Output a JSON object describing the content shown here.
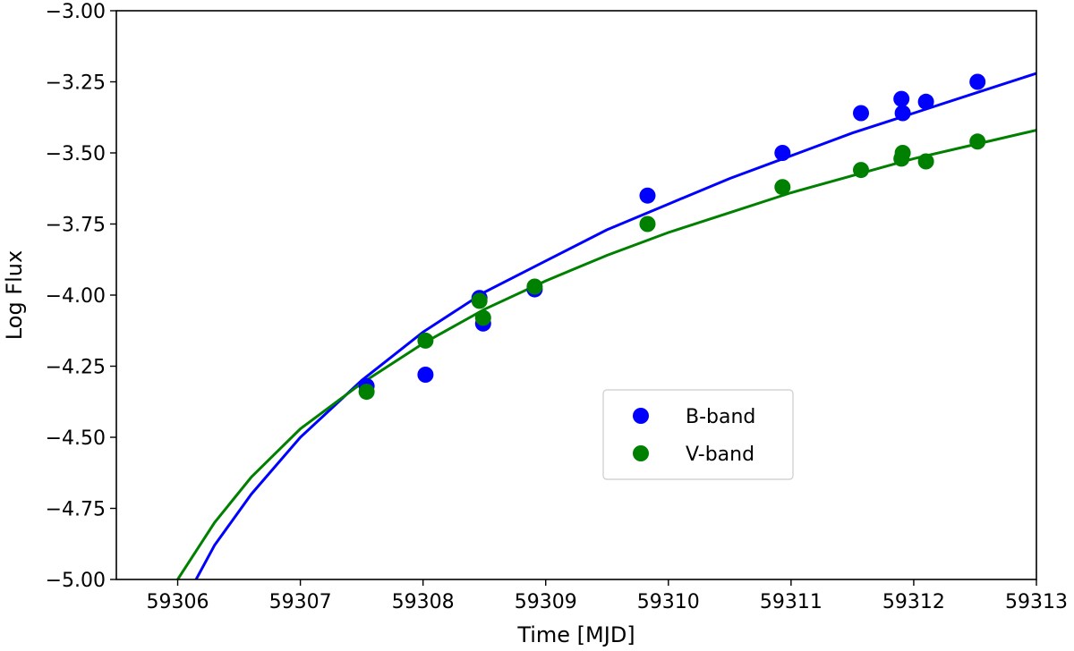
{
  "chart_data": {
    "type": "scatter",
    "xlabel": "Time [MJD]",
    "ylabel": "Log Flux",
    "xlim": [
      59305.5,
      59313
    ],
    "ylim": [
      -5.0,
      -3.0
    ],
    "x_ticks": [
      59306,
      59307,
      59308,
      59309,
      59310,
      59311,
      59312,
      59313
    ],
    "x_tick_labels": [
      "59306",
      "59307",
      "59308",
      "59309",
      "59310",
      "59311",
      "59312",
      "59313"
    ],
    "y_ticks": [
      -3.0,
      -3.25,
      -3.5,
      -3.75,
      -4.0,
      -4.25,
      -4.5,
      -4.75,
      -5.0
    ],
    "y_tick_labels": [
      "−3.00",
      "−3.25",
      "−3.50",
      "−3.75",
      "−4.00",
      "−4.25",
      "−4.50",
      "−4.75",
      "−5.00"
    ],
    "grid": false,
    "legend_position": "center-right",
    "series": [
      {
        "name": "B-band",
        "color": "#0000ff",
        "x": [
          59307.54,
          59308.02,
          59308.46,
          59308.49,
          59308.91,
          59309.83,
          59310.93,
          59311.57,
          59311.9,
          59311.91,
          59312.1,
          59312.52
        ],
        "y": [
          -4.32,
          -4.28,
          -4.01,
          -4.1,
          -3.98,
          -3.65,
          -3.5,
          -3.36,
          -3.31,
          -3.36,
          -3.32,
          -3.25
        ]
      },
      {
        "name": "V-band",
        "color": "#008000",
        "x": [
          59307.54,
          59308.02,
          59308.46,
          59308.49,
          59308.91,
          59309.83,
          59310.93,
          59311.57,
          59311.9,
          59311.91,
          59312.1,
          59312.52
        ],
        "y": [
          -4.34,
          -4.16,
          -4.02,
          -4.08,
          -3.97,
          -3.75,
          -3.62,
          -3.56,
          -3.52,
          -3.5,
          -3.53,
          -3.46
        ]
      }
    ],
    "fits": [
      {
        "color": "#0000ff",
        "x": [
          59306.1,
          59306.3,
          59306.6,
          59307.0,
          59307.5,
          59308.0,
          59308.5,
          59309.0,
          59309.5,
          59310.0,
          59310.5,
          59311.0,
          59311.5,
          59312.0,
          59312.5,
          59313.0
        ],
        "y": [
          -5.04,
          -4.88,
          -4.7,
          -4.5,
          -4.3,
          -4.13,
          -3.99,
          -3.88,
          -3.77,
          -3.68,
          -3.59,
          -3.51,
          -3.43,
          -3.36,
          -3.29,
          -3.22
        ]
      },
      {
        "color": "#008000",
        "x": [
          59306.0,
          59306.3,
          59306.6,
          59307.0,
          59307.5,
          59308.0,
          59308.5,
          59309.0,
          59309.5,
          59310.0,
          59310.5,
          59311.0,
          59311.5,
          59312.0,
          59312.5,
          59313.0
        ],
        "y": [
          -5.0,
          -4.8,
          -4.64,
          -4.47,
          -4.31,
          -4.17,
          -4.05,
          -3.95,
          -3.86,
          -3.78,
          -3.71,
          -3.64,
          -3.58,
          -3.52,
          -3.47,
          -3.42
        ]
      }
    ]
  }
}
